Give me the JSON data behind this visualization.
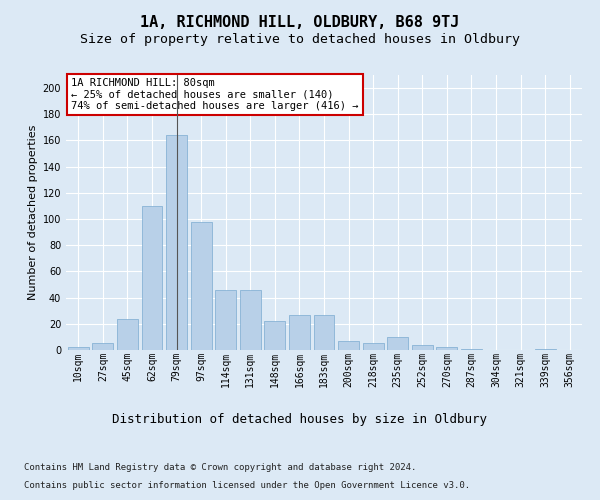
{
  "title": "1A, RICHMOND HILL, OLDBURY, B68 9TJ",
  "subtitle": "Size of property relative to detached houses in Oldbury",
  "xlabel": "Distribution of detached houses by size in Oldbury",
  "ylabel": "Number of detached properties",
  "categories": [
    "10sqm",
    "27sqm",
    "45sqm",
    "62sqm",
    "79sqm",
    "97sqm",
    "114sqm",
    "131sqm",
    "148sqm",
    "166sqm",
    "183sqm",
    "200sqm",
    "218sqm",
    "235sqm",
    "252sqm",
    "270sqm",
    "287sqm",
    "304sqm",
    "321sqm",
    "339sqm",
    "356sqm"
  ],
  "values": [
    2,
    5,
    24,
    110,
    164,
    98,
    46,
    46,
    22,
    27,
    27,
    7,
    5,
    10,
    4,
    2,
    1,
    0,
    0,
    1,
    0
  ],
  "bar_color": "#b8d0e8",
  "bar_edge_color": "#7aaad0",
  "highlight_index": 4,
  "highlight_line_color": "#555555",
  "annotation_box_text": "1A RICHMOND HILL: 80sqm\n← 25% of detached houses are smaller (140)\n74% of semi-detached houses are larger (416) →",
  "annotation_box_edge_color": "#cc0000",
  "annotation_box_facecolor": "#ffffff",
  "ylim": [
    0,
    210
  ],
  "yticks": [
    0,
    20,
    40,
    60,
    80,
    100,
    120,
    140,
    160,
    180,
    200
  ],
  "background_color": "#dce9f5",
  "plot_bg_color": "#dce9f5",
  "grid_color": "#ffffff",
  "footer_line1": "Contains HM Land Registry data © Crown copyright and database right 2024.",
  "footer_line2": "Contains public sector information licensed under the Open Government Licence v3.0.",
  "title_fontsize": 11,
  "subtitle_fontsize": 9.5,
  "xlabel_fontsize": 9,
  "ylabel_fontsize": 8,
  "tick_fontsize": 7,
  "annotation_fontsize": 7.5,
  "footer_fontsize": 6.5
}
